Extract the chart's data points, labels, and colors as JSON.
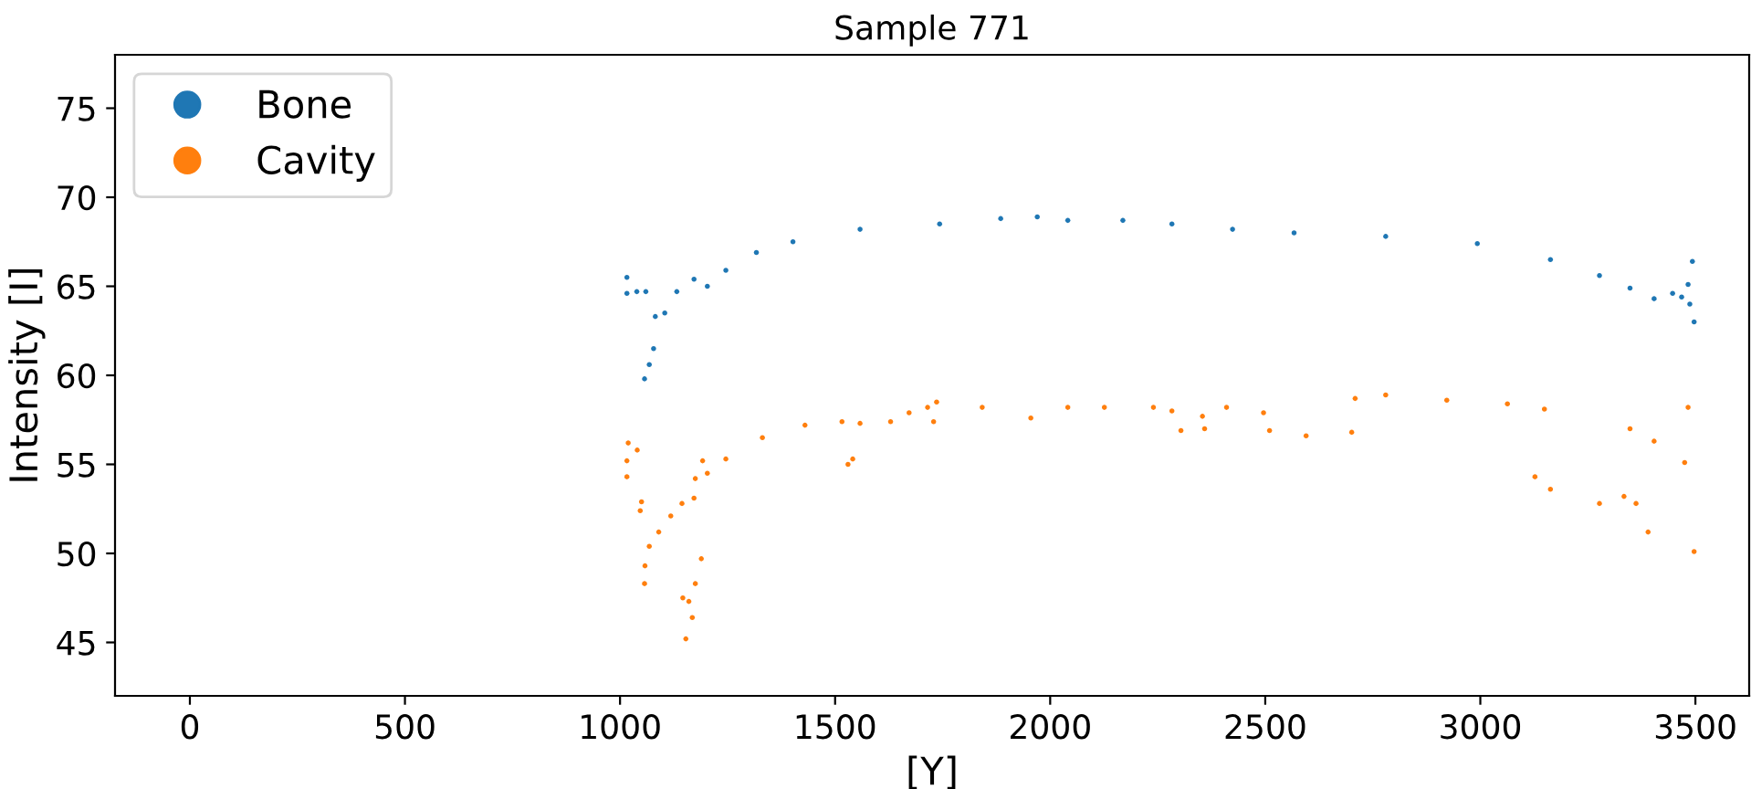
{
  "chart_data": {
    "type": "scatter",
    "title": "Sample 771",
    "xlabel": "[Y]",
    "ylabel": "Intensity [I]",
    "xlim": [
      -174,
      3625
    ],
    "ylim": [
      42,
      78
    ],
    "xticks": [
      0,
      500,
      1000,
      1500,
      2000,
      2500,
      3000,
      3500
    ],
    "yticks": [
      45,
      50,
      55,
      60,
      65,
      70,
      75
    ],
    "grid": false,
    "legend": "top left",
    "marker": "circle",
    "series": [
      {
        "name": "Bone",
        "color": "#1f77b4",
        "x": [
          1016,
          1016,
          1039,
          1060,
          1078,
          1068,
          1057,
          1082,
          1104,
          1132,
          1172,
          1203,
          1246,
          1317,
          1402,
          1558,
          1743,
          1885,
          1970,
          2041,
          2169,
          2283,
          2424,
          2567,
          2780,
          2993,
          3163,
          3277,
          3348,
          3404,
          3447,
          3468,
          3483,
          3493,
          3487,
          3497
        ],
        "values": [
          65.5,
          64.6,
          64.7,
          64.7,
          61.5,
          60.6,
          59.8,
          63.3,
          63.5,
          64.7,
          65.4,
          65.0,
          65.9,
          66.9,
          67.5,
          68.2,
          68.5,
          68.8,
          68.9,
          68.7,
          68.7,
          68.5,
          68.2,
          68.0,
          67.8,
          67.4,
          66.5,
          65.6,
          64.9,
          64.3,
          64.6,
          64.4,
          65.1,
          66.4,
          64.0,
          63.0
        ]
      },
      {
        "name": "Cavity",
        "color": "#ff7f0e",
        "x": [
          1019,
          1040,
          1016,
          1016,
          1050,
          1047,
          1058,
          1057,
          1068,
          1090,
          1118,
          1144,
          1175,
          1172,
          1192,
          1189,
          1175,
          1160,
          1168,
          1153,
          1146,
          1203,
          1246,
          1331,
          1430,
          1516,
          1558,
          1629,
          1672,
          1715,
          1729,
          1530,
          1541,
          1736,
          1842,
          1955,
          2041,
          2126,
          2240,
          2304,
          2283,
          2354,
          2410,
          2496,
          2359,
          2510,
          2595,
          2701,
          2709,
          2780,
          2922,
          3063,
          3149,
          3127,
          3163,
          3277,
          3334,
          3362,
          3390,
          3348,
          3404,
          3475,
          3483,
          3497
        ],
        "values": [
          56.2,
          55.8,
          55.2,
          54.3,
          52.9,
          52.4,
          49.3,
          48.3,
          50.4,
          51.2,
          52.1,
          52.8,
          54.2,
          53.1,
          55.2,
          49.7,
          48.3,
          47.3,
          46.4,
          45.2,
          47.5,
          54.5,
          55.3,
          56.5,
          57.2,
          57.4,
          57.3,
          57.4,
          57.9,
          58.2,
          57.4,
          55.0,
          55.3,
          58.5,
          58.2,
          57.6,
          58.2,
          58.2,
          58.2,
          56.9,
          58.0,
          57.7,
          58.2,
          57.9,
          57.0,
          56.9,
          56.6,
          56.8,
          58.7,
          58.9,
          58.6,
          58.4,
          58.1,
          54.3,
          53.6,
          52.8,
          53.2,
          52.8,
          51.2,
          57.0,
          56.3,
          55.1,
          58.2,
          50.1
        ]
      }
    ]
  }
}
